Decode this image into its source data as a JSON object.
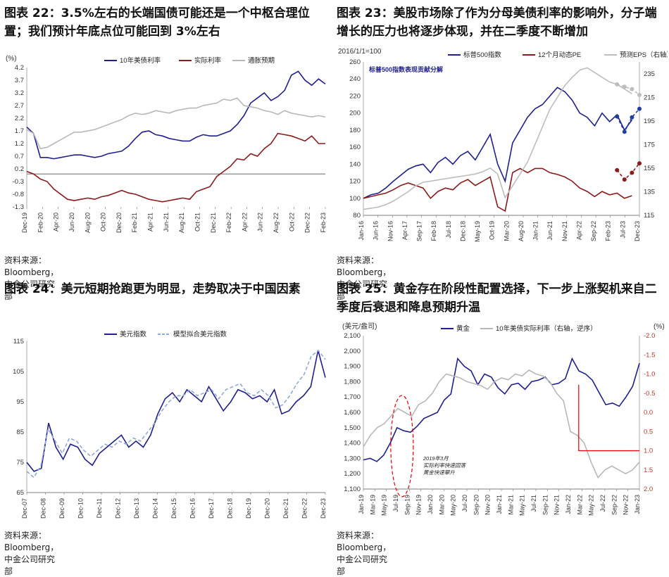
{
  "panels": [
    {
      "title": "图表 22：3.5%左右的长端国债可能还是一个中枢合理位置；我们预计年底点位可能回到 3%左右",
      "source": "资料来源：Bloomberg，中金公司研究部"
    },
    {
      "title": "图表 23：美股市场除了作为分母美债利率的影响外，分子端增长的压力也将逐步体现，并在二季度不断增加",
      "source": "资料来源：Bloomberg，中金公司研究部"
    },
    {
      "title": "图表 24：美元短期抢跑更为明显，走势取决于中国因素",
      "source": "资料来源：Bloomberg，中金公司研究部"
    },
    {
      "title": "图表 25：黄金存在阶段性配置选择，下一步上涨契机来自二季度后衰退和降息预期升温",
      "source": "资料来源：Bloomberg，中金公司研究部"
    }
  ],
  "chart_data": [
    {
      "type": "line",
      "y_unit": "(%)",
      "ylim": [
        -1.3,
        4.2
      ],
      "yticks": [
        "4.2",
        "3.7",
        "3.2",
        "2.7",
        "2.2",
        "1.7",
        "1.2",
        "0.7",
        "0.2",
        "-0.3",
        "-0.8",
        "-1.3"
      ],
      "xticks": [
        "Dec-19",
        "Feb-20",
        "Apr-20",
        "Jun-20",
        "Aug-20",
        "Oct-20",
        "Dec-20",
        "Feb-21",
        "Apr-21",
        "Jun-21",
        "Aug-21",
        "Oct-21",
        "Dec-21",
        "Feb-22",
        "Apr-22",
        "Jun-22",
        "Aug-22",
        "Oct-22",
        "Dec-22",
        "Feb-23"
      ],
      "legend_position": "top",
      "series": [
        {
          "name": "10年美债利率",
          "color": "#1f1f8f",
          "values": [
            1.85,
            1.6,
            0.65,
            0.65,
            0.6,
            0.65,
            0.7,
            0.75,
            0.75,
            0.7,
            0.65,
            0.7,
            0.8,
            0.85,
            0.9,
            1.1,
            1.4,
            1.65,
            1.7,
            1.55,
            1.5,
            1.4,
            1.35,
            1.3,
            1.3,
            1.45,
            1.55,
            1.5,
            1.5,
            1.6,
            1.7,
            1.95,
            2.3,
            2.8,
            3.0,
            3.2,
            2.9,
            3.05,
            3.3,
            3.9,
            4.05,
            3.7,
            3.5,
            3.75,
            3.55
          ]
        },
        {
          "name": "实际利率",
          "color": "#8b1a1a",
          "values": [
            0.1,
            0.0,
            -0.2,
            -0.3,
            -0.6,
            -0.8,
            -1.0,
            -1.05,
            -1.0,
            -0.95,
            -1.0,
            -0.9,
            -0.85,
            -0.75,
            -0.65,
            -0.75,
            -0.8,
            -0.9,
            -1.0,
            -1.05,
            -1.1,
            -1.05,
            -1.0,
            -0.95,
            -1.0,
            -0.7,
            -0.6,
            -0.5,
            -0.1,
            0.1,
            0.3,
            0.6,
            0.55,
            0.8,
            0.7,
            1.0,
            1.2,
            1.6,
            1.55,
            1.5,
            1.4,
            1.3,
            1.5,
            1.2,
            1.2
          ]
        },
        {
          "name": "通胀预期",
          "color": "#b8b8b8",
          "values": [
            1.75,
            1.6,
            1.0,
            1.05,
            1.2,
            1.35,
            1.5,
            1.65,
            1.65,
            1.7,
            1.75,
            1.85,
            1.95,
            2.05,
            2.15,
            2.3,
            2.4,
            2.35,
            2.4,
            2.5,
            2.45,
            2.4,
            2.5,
            2.55,
            2.6,
            2.6,
            2.7,
            2.75,
            2.8,
            2.95,
            2.9,
            3.0,
            2.7,
            2.65,
            2.6,
            2.5,
            2.45,
            2.35,
            2.5,
            2.4,
            2.35,
            2.3,
            2.25,
            2.3,
            2.25
          ]
        }
      ]
    },
    {
      "type": "line",
      "base_label": "2016/1/1=100",
      "inner_label": "标普500指数表现贡献分解",
      "ylim": [
        80,
        260
      ],
      "yticks": [
        "260",
        "240",
        "220",
        "200",
        "180",
        "160",
        "140",
        "120",
        "100",
        "80"
      ],
      "y2lim": [
        115,
        245
      ],
      "y2ticks": [
        "235",
        "215",
        "195",
        "175",
        "155",
        "135",
        "115"
      ],
      "xticks": [
        "Jan-16",
        "Jun-16",
        "Nov-16",
        "Apr-17",
        "Sep-17",
        "Feb-18",
        "Jul-18",
        "Dec-18",
        "May-19",
        "Oct-19",
        "Mar-20",
        "Aug-20",
        "Jan-21",
        "Jun-21",
        "Nov-21",
        "Apr-22",
        "Sep-22",
        "Feb-23",
        "Jul-23",
        "Dec-23"
      ],
      "legend_position": "top",
      "series": [
        {
          "name": "标普500指数",
          "color": "#1f1f8f",
          "values": [
            100,
            104,
            106,
            112,
            120,
            127,
            134,
            138,
            140,
            130,
            142,
            148,
            140,
            150,
            155,
            145,
            160,
            175,
            140,
            120,
            165,
            180,
            195,
            205,
            210,
            220,
            230,
            225,
            215,
            200,
            195,
            185,
            200,
            190,
            198,
            180,
            192
          ]
        },
        {
          "name": "12个月动态PE",
          "color": "#8b1a1a",
          "values": [
            100,
            102,
            104,
            106,
            110,
            115,
            118,
            115,
            112,
            100,
            108,
            112,
            110,
            118,
            122,
            115,
            120,
            125,
            90,
            85,
            130,
            135,
            130,
            135,
            135,
            130,
            128,
            125,
            120,
            112,
            108,
            102,
            108,
            104,
            106,
            100,
            103
          ]
        },
        {
          "name": "预测EPS（右轴）",
          "color": "#bdbdbd",
          "values": [
            120,
            121,
            122,
            124,
            127,
            131,
            135,
            140,
            143,
            144,
            145,
            146,
            147,
            148,
            149,
            150,
            152,
            155,
            150,
            130,
            140,
            150,
            160,
            175,
            190,
            205,
            215,
            225,
            232,
            238,
            240,
            236,
            232,
            228,
            226,
            222,
            218
          ]
        }
      ],
      "forecast": [
        {
          "name": "标普500指数",
          "color": "#1f3fa0",
          "x_index": [
            34,
            35,
            36,
            37
          ],
          "values": [
            196,
            178,
            195,
            205
          ]
        },
        {
          "name": "12个月动态PE",
          "color": "#8b1a1a",
          "x_index": [
            34,
            35,
            36,
            37
          ],
          "values": [
            133,
            122,
            130,
            141
          ]
        },
        {
          "name": "预测EPS（右轴）",
          "color": "#bdbdbd",
          "x_index": [
            34,
            35,
            36,
            37
          ],
          "values": [
            226,
            224,
            222,
            217
          ]
        }
      ]
    },
    {
      "type": "line",
      "ylim": [
        65,
        115
      ],
      "yticks": [
        "115",
        "105",
        "95",
        "85",
        "75",
        "65"
      ],
      "xticks": [
        "Dec-07",
        "Dec-08",
        "Dec-09",
        "Dec-10",
        "Dec-11",
        "Dec-12",
        "Dec-13",
        "Dec-14",
        "Dec-15",
        "Dec-16",
        "Dec-17",
        "Dec-18",
        "Dec-19",
        "Dec-20",
        "Dec-21",
        "Dec-22",
        "Dec-23"
      ],
      "legend_position": "top",
      "series": [
        {
          "name": "美元指数",
          "color": "#1f1f8f",
          "values": [
            75,
            72,
            73,
            88,
            80,
            76,
            81,
            80,
            76,
            74,
            78,
            80,
            82,
            84,
            80,
            82,
            80,
            84,
            91,
            96,
            98,
            95,
            99,
            97,
            95,
            100,
            96,
            92,
            95,
            99,
            98,
            96,
            97,
            95,
            99,
            91,
            92,
            95,
            97,
            100,
            112,
            103
          ]
        },
        {
          "name": "模型拟合美元指数",
          "color": "#8eaad8",
          "values": [
            72,
            70,
            74,
            86,
            82,
            78,
            83,
            82,
            79,
            77,
            79,
            81,
            80,
            82,
            81,
            83,
            82,
            85,
            88,
            92,
            95,
            97,
            97,
            99,
            97,
            98,
            99,
            96,
            99,
            100,
            101,
            98,
            97,
            99,
            97,
            93,
            94,
            97,
            101,
            104,
            110,
            112,
            109
          ]
        }
      ]
    },
    {
      "type": "line",
      "y_unit": "(美元/盎司)",
      "y2_unit": "(%)",
      "y2_label": "10年美债实际利率（右轴，逆序）",
      "ylim": [
        1100,
        2100
      ],
      "yticks": [
        "2,100",
        "2,000",
        "1,900",
        "1,800",
        "1,700",
        "1,600",
        "1,500",
        "1,400",
        "1,300",
        "1,200",
        "1,100"
      ],
      "y2lim": [
        2.0,
        -2.0
      ],
      "y2ticks": [
        "-2.0",
        "-1.5",
        "-1.0",
        "-0.5",
        "0.0",
        "0.5",
        "1.0",
        "1.5",
        "2.0"
      ],
      "xticks": [
        "Jan-19",
        "Mar-19",
        "May-19",
        "Jul-19",
        "Sep-19",
        "Nov-19",
        "Jan-20",
        "Mar-20",
        "May-20",
        "Jul-20",
        "Sep-20",
        "Nov-20",
        "Jan-21",
        "Mar-21",
        "May-21",
        "Jul-21",
        "Sep-21",
        "Nov-21",
        "Jan-22",
        "Mar-22",
        "May-22",
        "Jul-22",
        "Sep-22",
        "Nov-22",
        "Jan-23"
      ],
      "annotation": "2019年3月 实际利率快速回落 黄金快速攀升",
      "legend_position": "top",
      "series": [
        {
          "name": "黄金",
          "color": "#1f1f8f",
          "values": [
            1290,
            1300,
            1280,
            1320,
            1400,
            1500,
            1480,
            1470,
            1510,
            1560,
            1580,
            1600,
            1680,
            1720,
            1950,
            1900,
            1870,
            1780,
            1850,
            1830,
            1760,
            1720,
            1780,
            1790,
            1750,
            1800,
            1810,
            1830,
            1780,
            1790,
            1820,
            1950,
            1870,
            1850,
            1810,
            1730,
            1650,
            1660,
            1640,
            1700,
            1770,
            1920
          ]
        },
        {
          "name": "10年美债实际利率（右轴，逆序）",
          "color": "#b8b8b8",
          "values": [
            0.9,
            0.6,
            0.4,
            0.3,
            0.1,
            -0.1,
            0.0,
            0.1,
            -0.2,
            -0.3,
            -0.5,
            -0.8,
            -1.0,
            -0.95,
            -0.9,
            -0.8,
            -0.75,
            -0.7,
            -0.6,
            -0.8,
            -0.9,
            -0.85,
            -1.0,
            -0.95,
            -1.1,
            -1.0,
            -0.95,
            -0.8,
            -0.5,
            -0.3,
            0.5,
            0.6,
            0.8,
            1.3,
            1.7,
            1.5,
            1.4,
            1.5,
            1.6,
            1.5,
            1.3
          ]
        }
      ]
    }
  ]
}
